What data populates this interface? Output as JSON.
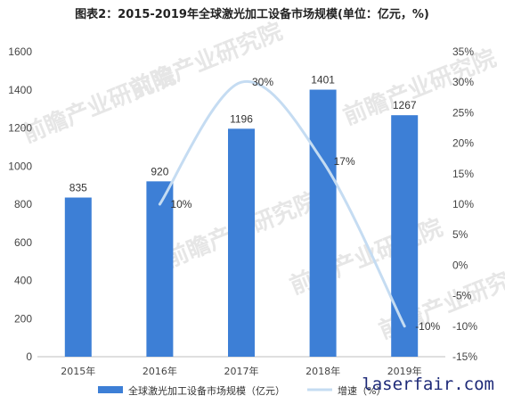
{
  "chart_data": {
    "type": "bar",
    "title": "图表2：2015-2019年全球激光加工设备市场规模(单位：亿元，%)",
    "categories": [
      "2015年",
      "2016年",
      "2017年",
      "2018年",
      "2019年"
    ],
    "series": [
      {
        "name": "全球激光加工设备市场规模（亿元）",
        "type": "bar",
        "axis": "left",
        "values": [
          835,
          920,
          1196,
          1401,
          1267
        ],
        "labels": [
          "835",
          "920",
          "1196",
          "1401",
          "1267"
        ]
      },
      {
        "name": "增速（%）",
        "type": "line",
        "axis": "right",
        "smooth": true,
        "values": [
          null,
          10,
          30,
          17,
          -10
        ],
        "labels": [
          "",
          "10%",
          "30%",
          "17%",
          "-10%"
        ]
      }
    ],
    "y_left": {
      "min": 0,
      "max": 1600,
      "step": 200,
      "ticks": [
        "0",
        "200",
        "400",
        "600",
        "800",
        "1000",
        "1200",
        "1400",
        "1600"
      ]
    },
    "y_right": {
      "min": -15,
      "max": 35,
      "step": 5,
      "ticks": [
        "-15%",
        "-10%",
        "-5%",
        "0%",
        "5%",
        "10%",
        "15%",
        "20%",
        "25%",
        "30%",
        "35%"
      ]
    },
    "grid": false,
    "legend": "bottom",
    "colors": {
      "bar": "#3d7fd6",
      "line": "#c5dcf2"
    }
  },
  "watermarks": [
    "前瞻产业研究院",
    "前瞻产业研究院",
    "前瞻产业研究院",
    "前瞻产业研究院",
    "前瞻产业研究院",
    "前瞻产业研究院"
  ],
  "site_text": "laserfair.com"
}
